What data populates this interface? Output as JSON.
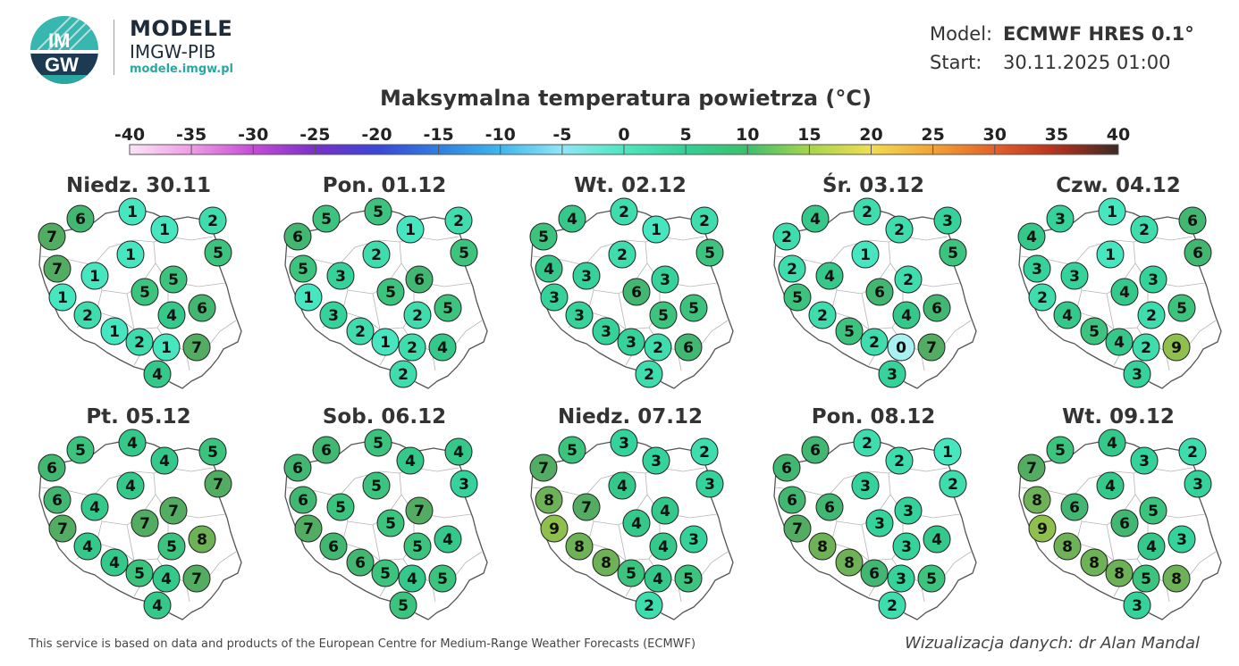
{
  "brand": {
    "title": "MODELE",
    "subtitle": "IMGW-PIB",
    "url": "modele.imgw.pl",
    "logo_text_top": "IM",
    "logo_text_bottom": "GW"
  },
  "model_info": {
    "model_label": "Model:",
    "model_value": "ECMWF HRES 0.1°",
    "start_label": "Start:",
    "start_value": "30.11.2025 01:00"
  },
  "title": "Maksymalna temperatura powietrza (°C)",
  "scale": {
    "ticks": [
      "-40",
      "-35",
      "-30",
      "-25",
      "-20",
      "-15",
      "-10",
      "-5",
      "0",
      "5",
      "10",
      "15",
      "20",
      "25",
      "30",
      "35",
      "40"
    ],
    "min": -40,
    "max": 40,
    "colors": [
      "#fbe3f7",
      "#ef9be6",
      "#c64bd6",
      "#7a2fc9",
      "#3a46d6",
      "#2f7fe0",
      "#3fb6ee",
      "#8fe6f6",
      "#4fe6c0",
      "#33d096",
      "#3dbf6c",
      "#a6d64a",
      "#f2dc50",
      "#f2a234",
      "#e4602a",
      "#b5301e",
      "#3b2a24"
    ]
  },
  "panels": [
    {
      "date": "Niedz. 30.11",
      "values": [
        7,
        6,
        1,
        1,
        2,
        5,
        7,
        1,
        1,
        5,
        1,
        5,
        2,
        1,
        2,
        4,
        6,
        1,
        7,
        4
      ]
    },
    {
      "date": "Pon. 01.12",
      "values": [
        6,
        5,
        5,
        1,
        2,
        5,
        5,
        3,
        2,
        6,
        1,
        5,
        3,
        2,
        1,
        2,
        5,
        2,
        4,
        2
      ]
    },
    {
      "date": "Wt. 02.12",
      "values": [
        5,
        4,
        2,
        1,
        2,
        5,
        4,
        3,
        2,
        3,
        3,
        6,
        3,
        3,
        3,
        5,
        5,
        2,
        6,
        2
      ]
    },
    {
      "date": "Śr. 03.12",
      "values": [
        2,
        4,
        2,
        2,
        3,
        5,
        2,
        4,
        1,
        2,
        5,
        6,
        2,
        5,
        2,
        4,
        6,
        0,
        7,
        3
      ]
    },
    {
      "date": "Czw. 04.12",
      "values": [
        4,
        3,
        1,
        2,
        6,
        6,
        3,
        3,
        1,
        3,
        2,
        4,
        4,
        5,
        4,
        2,
        5,
        2,
        9,
        3
      ]
    },
    {
      "date": "Pt. 05.12",
      "values": [
        6,
        5,
        4,
        4,
        5,
        7,
        6,
        4,
        4,
        7,
        7,
        7,
        4,
        4,
        5,
        5,
        8,
        4,
        7,
        4
      ]
    },
    {
      "date": "Sob. 06.12",
      "values": [
        6,
        6,
        5,
        4,
        4,
        3,
        6,
        5,
        5,
        7,
        7,
        5,
        6,
        6,
        5,
        5,
        4,
        4,
        5,
        5
      ]
    },
    {
      "date": "Niedz. 07.12",
      "values": [
        7,
        5,
        3,
        3,
        2,
        3,
        8,
        7,
        4,
        4,
        9,
        4,
        8,
        8,
        5,
        4,
        3,
        4,
        5,
        2
      ]
    },
    {
      "date": "Pon. 08.12",
      "values": [
        6,
        6,
        2,
        2,
        1,
        2,
        6,
        6,
        3,
        3,
        7,
        3,
        8,
        8,
        6,
        3,
        4,
        3,
        5,
        2
      ]
    },
    {
      "date": "Wt. 09.12",
      "values": [
        7,
        5,
        4,
        3,
        2,
        3,
        8,
        6,
        4,
        5,
        9,
        6,
        8,
        8,
        8,
        4,
        3,
        5,
        8,
        3
      ]
    }
  ],
  "footer": {
    "left": "This service is based on data and products of the European Centre for Medium-Range Weather Forecasts (ECMWF)",
    "right": "Wizualizacja danych: dr Alan Mandal"
  }
}
